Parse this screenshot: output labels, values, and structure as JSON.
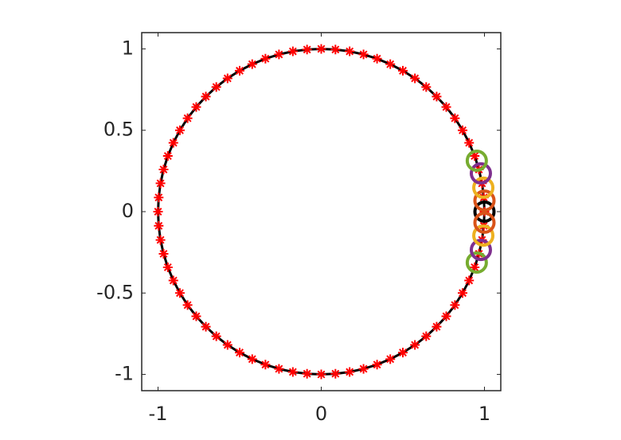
{
  "chart_data": {
    "type": "scatter",
    "xlim": [
      -1.1,
      1.1
    ],
    "ylim": [
      -1.1,
      1.1
    ],
    "xticks": [
      -1,
      0,
      1
    ],
    "yticks": [
      -1,
      -0.5,
      0,
      0.5,
      1
    ],
    "series": [
      {
        "marker": "asterisk",
        "color": "#ff0000",
        "line_color": "#000000",
        "x": [
          1,
          0.996,
          0.985,
          0.966,
          0.94,
          0.906,
          0.866,
          0.819,
          0.766,
          0.707,
          0.643,
          0.574,
          0.5,
          0.423,
          0.342,
          0.259,
          0.174,
          0.087,
          0,
          -0.087,
          -0.174,
          -0.259,
          -0.342,
          -0.423,
          -0.5,
          -0.574,
          -0.643,
          -0.707,
          -0.766,
          -0.819,
          -0.866,
          -0.906,
          -0.94,
          -0.966,
          -0.985,
          -0.996,
          -1,
          -0.996,
          -0.985,
          -0.966,
          -0.94,
          -0.906,
          -0.866,
          -0.819,
          -0.766,
          -0.707,
          -0.643,
          -0.574,
          -0.5,
          -0.423,
          -0.342,
          -0.259,
          -0.174,
          -0.087,
          0,
          0.087,
          0.174,
          0.259,
          0.342,
          0.423,
          0.5,
          0.574,
          0.643,
          0.707,
          0.766,
          0.819,
          0.866,
          0.906,
          0.94,
          0.966,
          0.985,
          0.996
        ],
        "y": [
          0,
          0.087,
          0.174,
          0.259,
          0.342,
          0.423,
          0.5,
          0.574,
          0.643,
          0.707,
          0.766,
          0.819,
          0.866,
          0.906,
          0.94,
          0.966,
          0.985,
          0.996,
          1,
          0.996,
          0.985,
          0.966,
          0.94,
          0.906,
          0.866,
          0.819,
          0.766,
          0.707,
          0.643,
          0.574,
          0.5,
          0.423,
          0.342,
          0.259,
          0.174,
          0.087,
          0,
          -0.087,
          -0.174,
          -0.259,
          -0.342,
          -0.423,
          -0.5,
          -0.574,
          -0.643,
          -0.707,
          -0.766,
          -0.819,
          -0.866,
          -0.906,
          -0.94,
          -0.966,
          -0.985,
          -0.996,
          -1,
          -0.996,
          -0.985,
          -0.966,
          -0.94,
          -0.906,
          -0.866,
          -0.819,
          -0.766,
          -0.707,
          -0.643,
          -0.574,
          -0.5,
          -0.423,
          -0.342,
          -0.259,
          -0.174,
          -0.087
        ]
      },
      {
        "marker": "circle",
        "colors": [
          "#000000",
          "#77ac30",
          "#7e2f8e",
          "#edb120",
          "#d95319",
          "#d95319",
          "#edb120",
          "#7e2f8e",
          "#77ac30"
        ],
        "x": [
          1.0,
          0.953,
          0.978,
          0.993,
          1.0,
          1.0,
          0.993,
          0.978,
          0.953
        ],
        "y": [
          0,
          -0.313,
          -0.235,
          -0.147,
          -0.068,
          0.068,
          0.147,
          0.235,
          0.313
        ]
      }
    ]
  }
}
